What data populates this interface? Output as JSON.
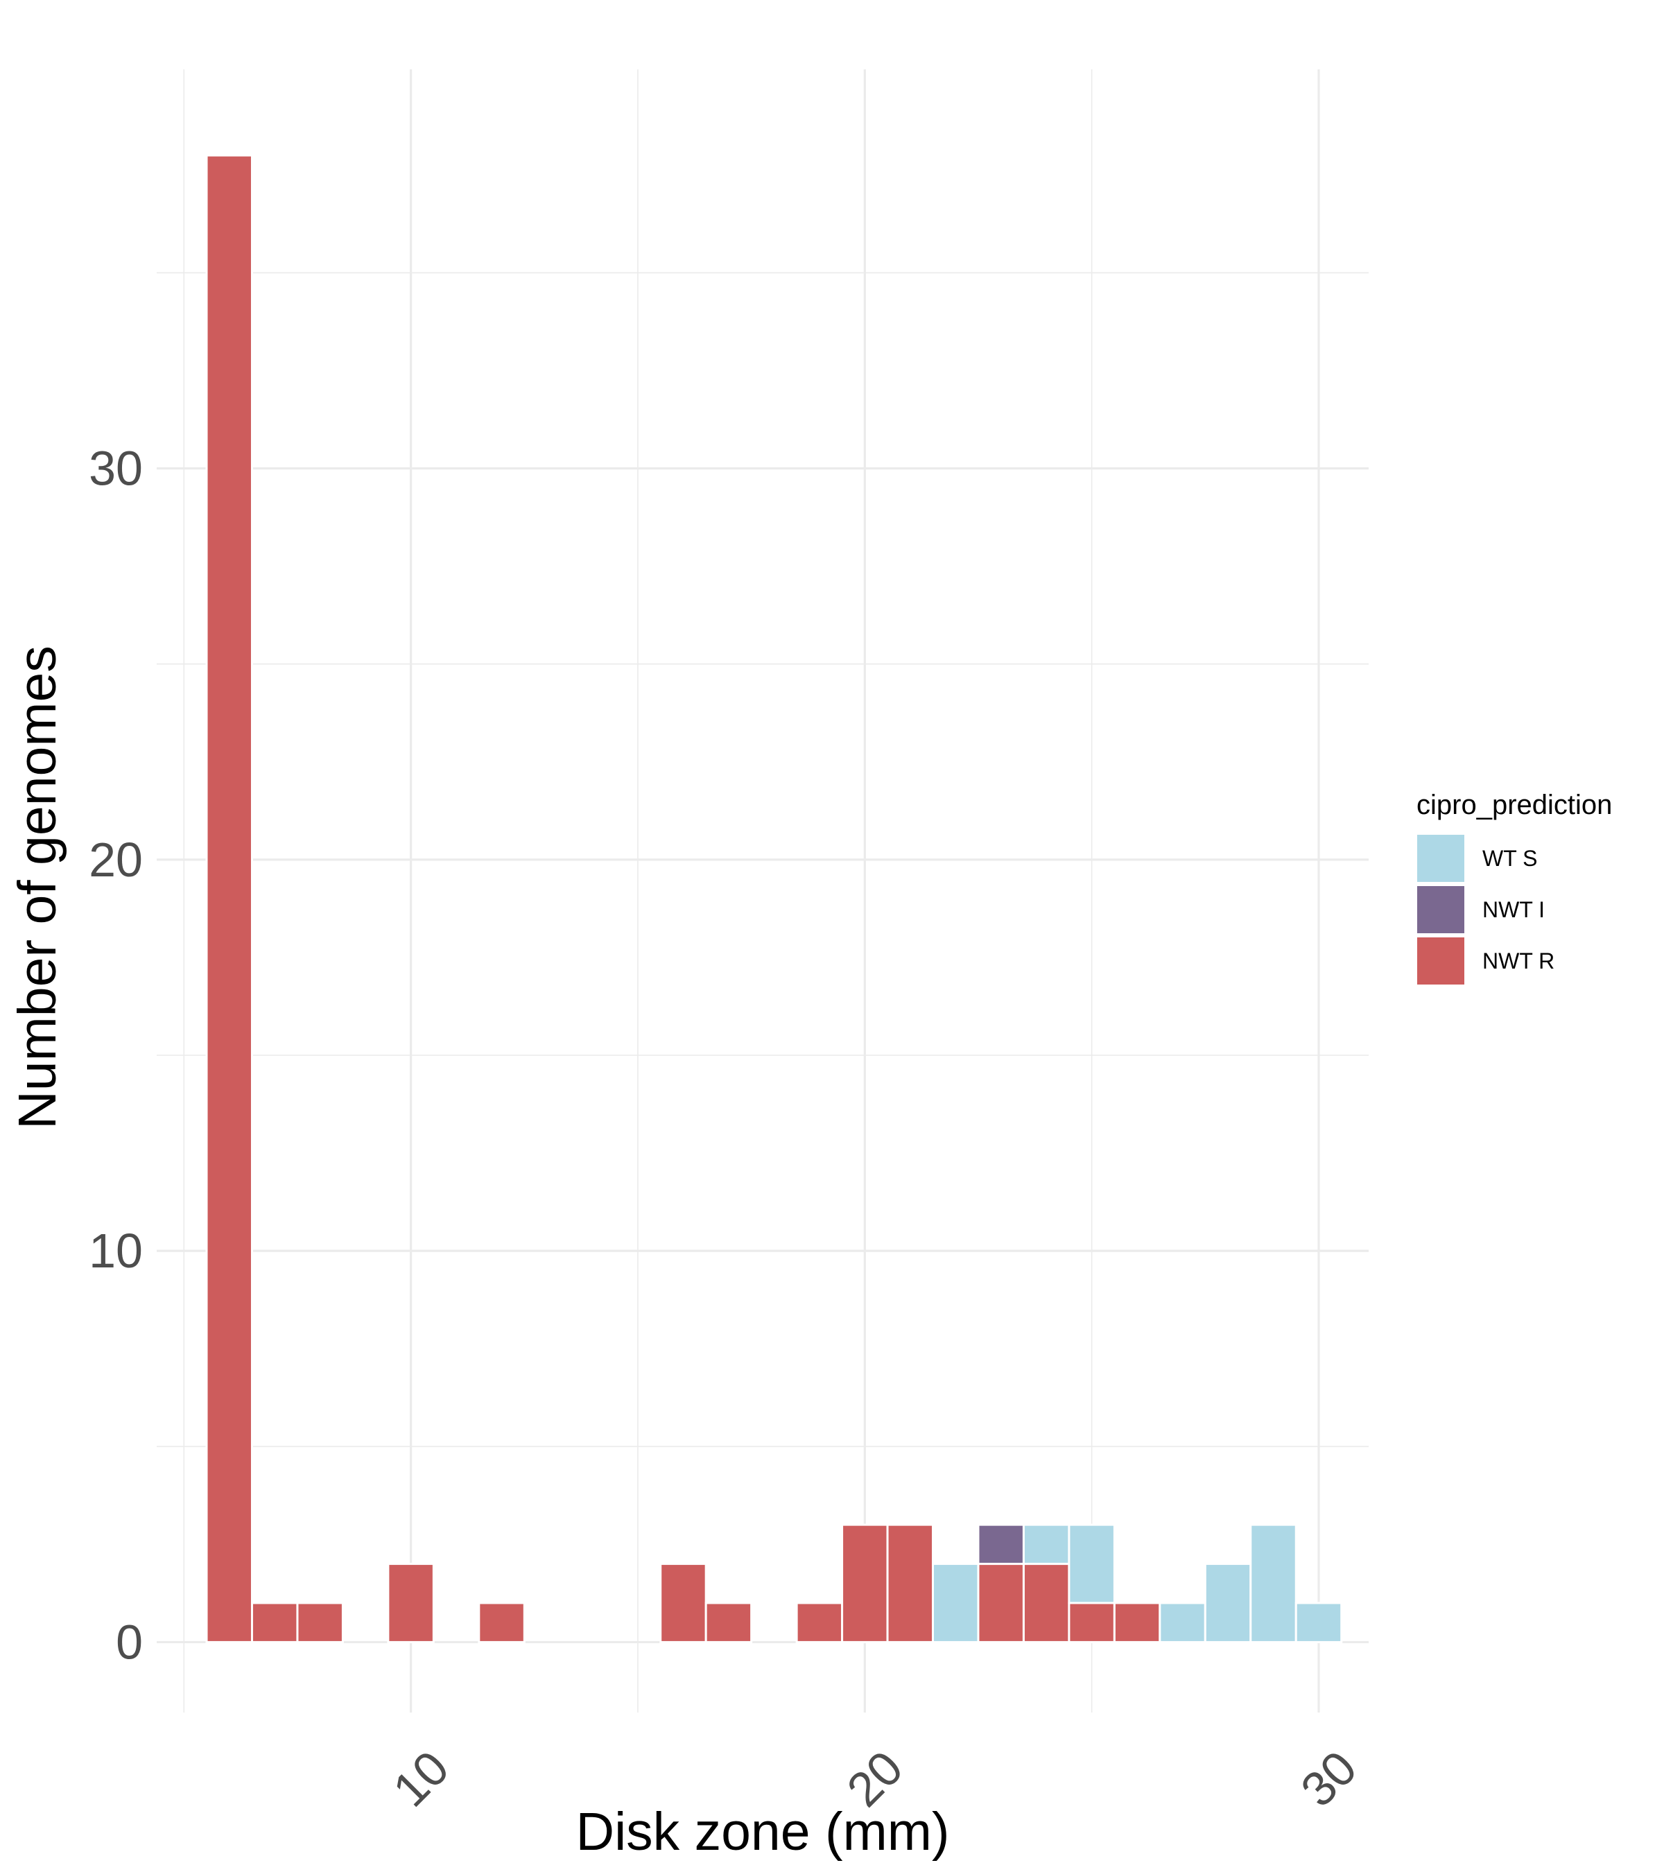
{
  "chart_data": {
    "type": "bar",
    "stacked": true,
    "xlabel": "Disk zone (mm)",
    "ylabel": "Number of genomes",
    "x_ticks": [
      10,
      20,
      30
    ],
    "x_tick_labels": [
      "10",
      "20",
      "30"
    ],
    "y_ticks": [
      0,
      10,
      20,
      30
    ],
    "y_tick_labels": [
      "0",
      "10",
      "20",
      "30"
    ],
    "xlim": [
      4.4,
      31.1
    ],
    "ylim": [
      -1.8,
      40.2
    ],
    "bin_width": 1,
    "grid": true,
    "legend": {
      "title": "cipro_prediction",
      "position": "right",
      "entries": [
        "WT S",
        "NWT I",
        "NWT R"
      ]
    },
    "colors": {
      "WT S": "#add8e6",
      "NWT I": "#7a6890",
      "NWT R": "#cd5c5c"
    },
    "x": [
      6,
      7,
      8,
      10,
      12,
      16,
      17,
      19,
      20,
      21,
      22,
      23,
      24,
      25,
      26,
      27,
      28,
      29,
      30
    ],
    "series": [
      {
        "name": "NWT R",
        "values": [
          38,
          1,
          1,
          2,
          1,
          2,
          1,
          1,
          3,
          3,
          0,
          2,
          2,
          1,
          1,
          0,
          0,
          0,
          0
        ]
      },
      {
        "name": "NWT I",
        "values": [
          0,
          0,
          0,
          0,
          0,
          0,
          0,
          0,
          0,
          0,
          0,
          1,
          0,
          0,
          0,
          0,
          0,
          0,
          0
        ]
      },
      {
        "name": "WT S",
        "values": [
          0,
          0,
          0,
          0,
          0,
          0,
          0,
          0,
          0,
          0,
          2,
          0,
          1,
          2,
          0,
          1,
          2,
          3,
          1
        ]
      }
    ]
  }
}
